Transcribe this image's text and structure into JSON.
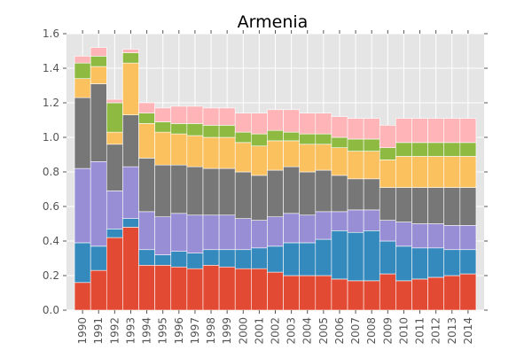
{
  "chart_data": {
    "type": "bar",
    "stacked": true,
    "title": "Armenia",
    "xlabel": "",
    "ylabel": "",
    "ylim": [
      0,
      1.6
    ],
    "yticks": [
      "0.0",
      "0.2",
      "0.4",
      "0.6",
      "0.8",
      "1.0",
      "1.2",
      "1.4",
      "1.6"
    ],
    "grid": true,
    "legend": "none",
    "categories": [
      "1990",
      "1991",
      "1992",
      "1993",
      "1994",
      "1995",
      "1996",
      "1997",
      "1998",
      "1999",
      "2000",
      "2001",
      "2002",
      "2003",
      "2004",
      "2005",
      "2006",
      "2007",
      "2008",
      "2009",
      "2010",
      "2011",
      "2012",
      "2013",
      "2014"
    ],
    "series": [
      {
        "color": "#E24A33",
        "values": [
          0.16,
          0.23,
          0.42,
          0.48,
          0.26,
          0.26,
          0.25,
          0.24,
          0.26,
          0.25,
          0.24,
          0.24,
          0.22,
          0.2,
          0.2,
          0.2,
          0.18,
          0.17,
          0.17,
          0.21,
          0.17,
          0.18,
          0.19,
          0.2,
          0.21
        ]
      },
      {
        "color": "#348ABD",
        "values": [
          0.23,
          0.14,
          0.05,
          0.05,
          0.09,
          0.06,
          0.09,
          0.09,
          0.09,
          0.1,
          0.11,
          0.12,
          0.15,
          0.19,
          0.19,
          0.21,
          0.28,
          0.28,
          0.29,
          0.19,
          0.2,
          0.18,
          0.17,
          0.15,
          0.14
        ]
      },
      {
        "color": "#988ED5",
        "values": [
          0.43,
          0.49,
          0.22,
          0.3,
          0.22,
          0.22,
          0.22,
          0.22,
          0.2,
          0.2,
          0.18,
          0.16,
          0.17,
          0.17,
          0.16,
          0.16,
          0.11,
          0.13,
          0.12,
          0.12,
          0.14,
          0.14,
          0.14,
          0.14,
          0.14
        ]
      },
      {
        "color": "#777777",
        "values": [
          0.41,
          0.45,
          0.27,
          0.3,
          0.31,
          0.3,
          0.28,
          0.28,
          0.27,
          0.27,
          0.27,
          0.26,
          0.27,
          0.27,
          0.25,
          0.24,
          0.21,
          0.18,
          0.18,
          0.19,
          0.2,
          0.21,
          0.21,
          0.22,
          0.22
        ]
      },
      {
        "color": "#FBC15E",
        "values": [
          0.11,
          0.1,
          0.07,
          0.3,
          0.2,
          0.19,
          0.18,
          0.18,
          0.18,
          0.18,
          0.17,
          0.17,
          0.17,
          0.15,
          0.16,
          0.15,
          0.16,
          0.16,
          0.16,
          0.16,
          0.18,
          0.18,
          0.18,
          0.18,
          0.18
        ]
      },
      {
        "color": "#8EBA42",
        "values": [
          0.09,
          0.06,
          0.17,
          0.06,
          0.06,
          0.06,
          0.06,
          0.07,
          0.07,
          0.07,
          0.06,
          0.07,
          0.06,
          0.05,
          0.06,
          0.06,
          0.06,
          0.07,
          0.07,
          0.07,
          0.08,
          0.08,
          0.08,
          0.08,
          0.08
        ]
      },
      {
        "color": "#FFB5B8",
        "values": [
          0.04,
          0.05,
          0.02,
          0.02,
          0.06,
          0.08,
          0.1,
          0.1,
          0.1,
          0.1,
          0.11,
          0.12,
          0.12,
          0.13,
          0.12,
          0.12,
          0.12,
          0.12,
          0.12,
          0.13,
          0.14,
          0.14,
          0.14,
          0.14,
          0.14
        ]
      }
    ]
  }
}
